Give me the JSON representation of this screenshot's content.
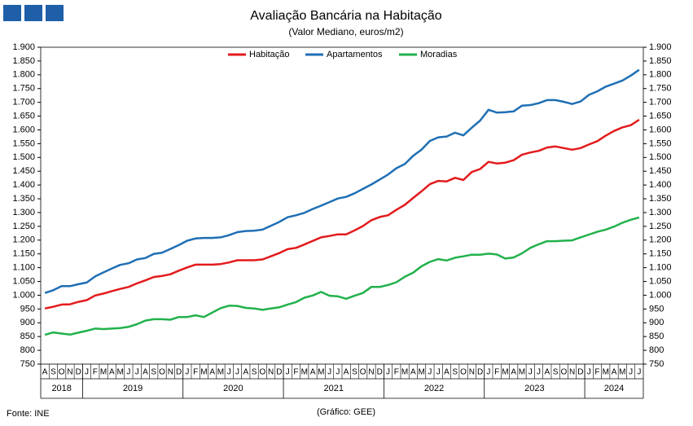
{
  "chart_data": {
    "type": "line",
    "title": "Avaliação Bancária na Habitação",
    "subtitle": "(Valor Mediano, euros/m2)",
    "source": "Fonte: INE",
    "credit": "(Gráfico: GEE)",
    "categories": [
      "A",
      "S",
      "O",
      "N",
      "D",
      "J",
      "F",
      "M",
      "A",
      "M",
      "J",
      "J",
      "A",
      "S",
      "O",
      "N",
      "D",
      "J",
      "F",
      "M",
      "A",
      "M",
      "J",
      "J",
      "A",
      "S",
      "O",
      "N",
      "D",
      "J",
      "F",
      "M",
      "A",
      "M",
      "J",
      "J",
      "A",
      "S",
      "O",
      "N",
      "D",
      "J",
      "F",
      "M",
      "A",
      "M",
      "J",
      "J",
      "A",
      "S",
      "O",
      "N",
      "D",
      "J",
      "F",
      "M",
      "A",
      "M",
      "J",
      "J",
      "A",
      "S",
      "O",
      "N",
      "D",
      "J",
      "F",
      "M",
      "A",
      "M",
      "J",
      "J"
    ],
    "years": [
      "2018",
      "2019",
      "2020",
      "2021",
      "2022",
      "2023",
      "2024"
    ],
    "series": [
      {
        "name": "Habitação",
        "color": "#e31a1c",
        "values": [
          952,
          958,
          966,
          967,
          976,
          982,
          999,
          1006,
          1015,
          1023,
          1030,
          1043,
          1054,
          1066,
          1070,
          1076,
          1089,
          1101,
          1111,
          1111,
          1111,
          1113,
          1119,
          1127,
          1127,
          1127,
          1130,
          1141,
          1153,
          1167,
          1172,
          1184,
          1197,
          1210,
          1215,
          1221,
          1221,
          1235,
          1251,
          1272,
          1284,
          1290,
          1310,
          1328,
          1353,
          1377,
          1403,
          1415,
          1413,
          1426,
          1418,
          1447,
          1458,
          1484,
          1478,
          1481,
          1490,
          1510,
          1518,
          1524,
          1536,
          1540,
          1534,
          1528,
          1534,
          1547,
          1559,
          1579,
          1596,
          1609,
          1617,
          1637
        ]
      },
      {
        "name": "Apartamentos",
        "color": "#1f6fb4",
        "values": [
          1008,
          1018,
          1033,
          1033,
          1040,
          1046,
          1068,
          1083,
          1097,
          1110,
          1116,
          1130,
          1135,
          1150,
          1154,
          1168,
          1182,
          1198,
          1206,
          1208,
          1208,
          1210,
          1218,
          1229,
          1233,
          1234,
          1238,
          1252,
          1266,
          1283,
          1290,
          1299,
          1313,
          1325,
          1338,
          1351,
          1357,
          1370,
          1386,
          1402,
          1420,
          1438,
          1461,
          1476,
          1506,
          1528,
          1560,
          1573,
          1576,
          1590,
          1580,
          1608,
          1634,
          1673,
          1663,
          1664,
          1667,
          1688,
          1690,
          1697,
          1708,
          1708,
          1702,
          1694,
          1703,
          1727,
          1740,
          1757,
          1768,
          1779,
          1797,
          1818
        ]
      },
      {
        "name": "Moradias",
        "color": "#22b14c",
        "values": [
          856,
          865,
          861,
          857,
          864,
          871,
          879,
          877,
          879,
          881,
          885,
          895,
          908,
          913,
          913,
          911,
          921,
          921,
          927,
          921,
          937,
          953,
          962,
          961,
          954,
          952,
          947,
          952,
          956,
          966,
          975,
          991,
          999,
          1012,
          998,
          996,
          987,
          998,
          1008,
          1030,
          1030,
          1037,
          1047,
          1067,
          1082,
          1105,
          1121,
          1131,
          1126,
          1136,
          1141,
          1147,
          1147,
          1151,
          1148,
          1133,
          1137,
          1152,
          1172,
          1185,
          1196,
          1196,
          1198,
          1199,
          1210,
          1220,
          1230,
          1238,
          1249,
          1263,
          1274,
          1282
        ]
      }
    ],
    "ylim": [
      750,
      1900
    ],
    "yticks": [
      750,
      800,
      850,
      900,
      950,
      {
        "value": 1000,
        "label": "1.000"
      },
      {
        "value": 1050,
        "label": "1.050"
      },
      {
        "value": 1100,
        "label": "1.100"
      },
      {
        "value": 1150,
        "label": "1.150"
      },
      {
        "value": 1200,
        "label": "1.200"
      },
      {
        "value": 1250,
        "label": "1.250"
      },
      {
        "value": 1300,
        "label": "1.300"
      },
      {
        "value": 1350,
        "label": "1.350"
      },
      {
        "value": 1400,
        "label": "1.400"
      },
      {
        "value": 1450,
        "label": "1.450"
      },
      {
        "value": 1500,
        "label": "1.500"
      },
      {
        "value": 1550,
        "label": "1.550"
      },
      {
        "value": 1600,
        "label": "1.600"
      },
      {
        "value": 1650,
        "label": "1.650"
      },
      {
        "value": 1700,
        "label": "1.700"
      },
      {
        "value": 1750,
        "label": "1.750"
      },
      {
        "value": 1800,
        "label": "1.800"
      },
      {
        "value": 1850,
        "label": "1.850"
      },
      {
        "value": 1900,
        "label": "1.900"
      }
    ],
    "y2lim": [
      750,
      1900
    ],
    "y2ticks": [
      750,
      800,
      850,
      900,
      950,
      {
        "value": 1000,
        "label": "1.000"
      },
      {
        "value": 1050,
        "label": "1.050"
      },
      {
        "value": 1100,
        "label": "1.100"
      },
      {
        "value": 1150,
        "label": "1.150"
      },
      {
        "value": 1200,
        "label": "1.200"
      },
      {
        "value": 1250,
        "label": "1.250"
      },
      {
        "value": 1300,
        "label": "1.300"
      },
      {
        "value": 1350,
        "label": "1.350"
      },
      {
        "value": 1400,
        "label": "1.400"
      },
      {
        "value": 1450,
        "label": "1.450"
      },
      {
        "value": 1500,
        "label": "1.500"
      },
      {
        "value": 1550,
        "label": "1.550"
      },
      {
        "value": 1600,
        "label": "1.600"
      },
      {
        "value": 1650,
        "label": "1.650"
      },
      {
        "value": 1700,
        "label": "1.700"
      },
      {
        "value": 1750,
        "label": "1.750"
      },
      {
        "value": 1800,
        "label": "1.800"
      },
      {
        "value": 1850,
        "label": "1.850"
      },
      {
        "value": 1900,
        "label": "1.900"
      }
    ],
    "grid": false,
    "legend": "top"
  }
}
